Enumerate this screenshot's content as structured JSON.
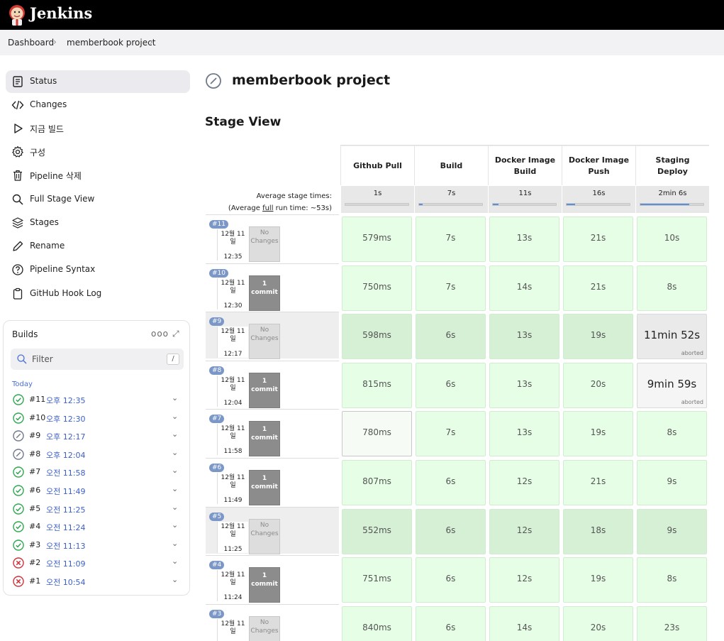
{
  "app": {
    "brand": "Jenkins"
  },
  "breadcrumb": [
    "Dashboard",
    "memberbook project"
  ],
  "sidebar": {
    "items": [
      {
        "label": "Status",
        "icon": "status-icon"
      },
      {
        "label": "Changes",
        "icon": "code-icon"
      },
      {
        "label": "지금 빌드",
        "icon": "play-icon"
      },
      {
        "label": "구성",
        "icon": "gear-icon"
      },
      {
        "label": "Pipeline 삭제",
        "icon": "trash-icon"
      },
      {
        "label": "Full Stage View",
        "icon": "search-icon"
      },
      {
        "label": "Stages",
        "icon": "layers-icon"
      },
      {
        "label": "Rename",
        "icon": "pencil-icon"
      },
      {
        "label": "Pipeline Syntax",
        "icon": "help-icon"
      },
      {
        "label": "GitHub Hook Log",
        "icon": "clipboard-icon"
      }
    ]
  },
  "builds": {
    "title": "Builds",
    "more": "ooo",
    "filter_placeholder": "Filter",
    "filter_key": "/",
    "group": "Today",
    "items": [
      {
        "num": "#11",
        "time": "오후 12:35",
        "status": "success"
      },
      {
        "num": "#10",
        "time": "오후 12:30",
        "status": "success"
      },
      {
        "num": "#9",
        "time": "오후 12:17",
        "status": "aborted"
      },
      {
        "num": "#8",
        "time": "오후 12:04",
        "status": "aborted"
      },
      {
        "num": "#7",
        "time": "오전 11:58",
        "status": "success"
      },
      {
        "num": "#6",
        "time": "오전 11:49",
        "status": "success"
      },
      {
        "num": "#5",
        "time": "오전 11:25",
        "status": "success"
      },
      {
        "num": "#4",
        "time": "오전 11:24",
        "status": "success"
      },
      {
        "num": "#3",
        "time": "오전 11:13",
        "status": "success"
      },
      {
        "num": "#2",
        "time": "오전 11:09",
        "status": "failed"
      },
      {
        "num": "#1",
        "time": "오전 10:54",
        "status": "failed"
      }
    ]
  },
  "main": {
    "title": "memberbook project",
    "stage_view_title": "Stage View"
  },
  "stage_view": {
    "avg_label": "Average stage times:",
    "avg_full_prefix": "(Average ",
    "avg_full_link": "full",
    "avg_full_suffix": " run time: ~53s)",
    "stages": [
      {
        "name1": "Github Pull",
        "name2": "",
        "avg": "1s",
        "share": 0.0
      },
      {
        "name1": "Build",
        "name2": "",
        "avg": "7s",
        "share": 0.06
      },
      {
        "name1": "Docker Image",
        "name2": "Build",
        "avg": "11s",
        "share": 0.09
      },
      {
        "name1": "Docker Image",
        "name2": "Push",
        "avg": "16s",
        "share": 0.13
      },
      {
        "name1": "Staging",
        "name2": "Deploy",
        "avg": "2min 6s",
        "share": 0.78
      }
    ],
    "runs": [
      {
        "id": "#11",
        "date1": "12월 11",
        "date2": "일",
        "time": "12:35",
        "changes_line1": "No",
        "changes_line2": "Changes",
        "commit": false,
        "gray": false,
        "cells": [
          "579ms",
          "7s",
          "13s",
          "21s",
          "10s"
        ],
        "styles": [
          "",
          "",
          "",
          "",
          ""
        ]
      },
      {
        "id": "#10",
        "date1": "12월 11",
        "date2": "일",
        "time": "12:30",
        "changes_line1": "1",
        "changes_line2": "commit",
        "commit": true,
        "gray": false,
        "cells": [
          "750ms",
          "7s",
          "14s",
          "21s",
          "8s"
        ],
        "styles": [
          "",
          "",
          "",
          "",
          ""
        ]
      },
      {
        "id": "#9",
        "date1": "12월 11",
        "date2": "일",
        "time": "12:17",
        "changes_line1": "No",
        "changes_line2": "Changes",
        "commit": false,
        "gray": true,
        "cells": [
          "598ms",
          "6s",
          "13s",
          "19s",
          "11min 52s"
        ],
        "styles": [
          "dark",
          "dark",
          "dark",
          "dark",
          "aborted"
        ],
        "aborted_label": "aborted"
      },
      {
        "id": "#8",
        "date1": "12월 11",
        "date2": "일",
        "time": "12:04",
        "changes_line1": "1",
        "changes_line2": "commit",
        "commit": true,
        "gray": false,
        "cells": [
          "815ms",
          "6s",
          "13s",
          "20s",
          "9min 59s"
        ],
        "styles": [
          "",
          "",
          "",
          "",
          "aborted-light"
        ],
        "aborted_label": "aborted"
      },
      {
        "id": "#7",
        "date1": "12월 11",
        "date2": "일",
        "time": "11:58",
        "changes_line1": "1",
        "changes_line2": "commit",
        "commit": true,
        "gray": false,
        "cells": [
          "780ms",
          "7s",
          "13s",
          "19s",
          "8s"
        ],
        "styles": [
          "light",
          "",
          "",
          "",
          ""
        ]
      },
      {
        "id": "#6",
        "date1": "12월 11",
        "date2": "일",
        "time": "11:49",
        "changes_line1": "1",
        "changes_line2": "commit",
        "commit": true,
        "gray": false,
        "cells": [
          "807ms",
          "6s",
          "12s",
          "21s",
          "9s"
        ],
        "styles": [
          "",
          "",
          "",
          "",
          ""
        ]
      },
      {
        "id": "#5",
        "date1": "12월 11",
        "date2": "일",
        "time": "11:25",
        "changes_line1": "No",
        "changes_line2": "Changes",
        "commit": false,
        "gray": true,
        "cells": [
          "552ms",
          "6s",
          "12s",
          "18s",
          "9s"
        ],
        "styles": [
          "dark",
          "dark",
          "dark",
          "dark",
          "dark"
        ]
      },
      {
        "id": "#4",
        "date1": "12월 11",
        "date2": "일",
        "time": "11:24",
        "changes_line1": "1",
        "changes_line2": "commit",
        "commit": true,
        "gray": false,
        "cells": [
          "751ms",
          "6s",
          "12s",
          "19s",
          "8s"
        ],
        "styles": [
          "",
          "",
          "",
          "",
          ""
        ]
      },
      {
        "id": "#3",
        "date1": "12월 11",
        "date2": "일",
        "time": "",
        "changes_line1": "No",
        "changes_line2": "Changes",
        "commit": false,
        "gray": false,
        "cells": [
          "840ms",
          "6s",
          "14s",
          "20s",
          "23s"
        ],
        "styles": [
          "",
          "",
          "",
          "",
          ""
        ]
      }
    ]
  },
  "colors": {
    "success": "#2fa84f",
    "aborted": "#6e7a8c",
    "failed": "#d0323a",
    "link": "#3b5fc9"
  }
}
